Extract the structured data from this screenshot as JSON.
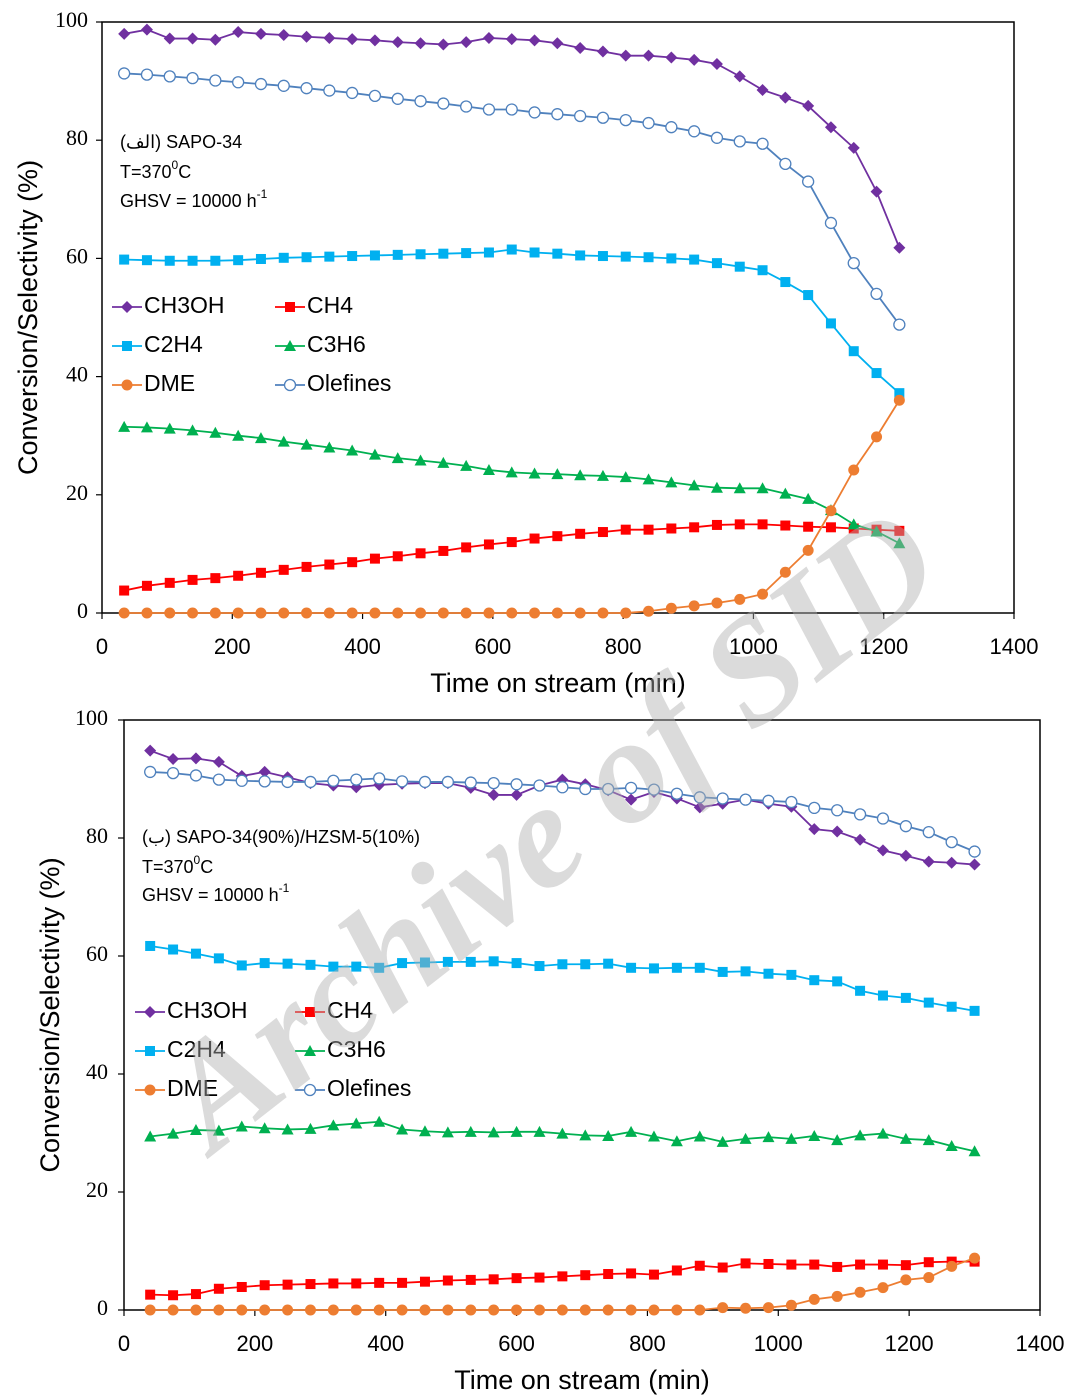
{
  "watermark": "Archive of SID",
  "chart_data": [
    {
      "type": "line",
      "annotation": [
        "(الف)",
        "SAPO-34",
        "T=370",
        "0",
        "C",
        "GHSV = 10000 h",
        "-1"
      ],
      "x_label": "Time on stream (min)",
      "y_label": "Conversion/Selectivity (%)",
      "xlim": [
        0,
        1400
      ],
      "xticks": [
        0,
        200,
        400,
        600,
        800,
        1000,
        1200,
        1400
      ],
      "ylim": [
        0,
        100
      ],
      "yticks": [
        0,
        20,
        40,
        60,
        80,
        100
      ],
      "x": [
        34,
        69,
        104,
        139,
        174,
        209,
        244,
        279,
        314,
        349,
        384,
        419,
        454,
        489,
        524,
        559,
        594,
        629,
        664,
        699,
        734,
        769,
        804,
        839,
        874,
        909,
        944,
        979,
        1014,
        1049,
        1084,
        1119,
        1154,
        1189,
        1224
      ],
      "series": [
        {
          "name": "CH3OH",
          "color": "#7030a0",
          "marker": "diamond",
          "values": [
            98,
            98.7,
            97.2,
            97.2,
            97,
            98.3,
            98,
            97.8,
            97.5,
            97.3,
            97.1,
            96.9,
            96.6,
            96.4,
            96.2,
            96.6,
            97.3,
            97.1,
            96.9,
            96.4,
            95.6,
            95,
            94.3,
            94.3,
            94,
            93.6,
            92.9,
            90.8,
            88.5,
            87.2,
            85.8,
            82.2,
            78.7,
            71.3,
            61.8
          ]
        },
        {
          "name": "CH4",
          "color": "#ff0000",
          "marker": "square",
          "values": [
            3.8,
            4.6,
            5.1,
            5.6,
            5.9,
            6.3,
            6.8,
            7.3,
            7.8,
            8.2,
            8.6,
            9.2,
            9.6,
            10.1,
            10.5,
            11.1,
            11.6,
            12,
            12.6,
            13,
            13.4,
            13.7,
            14.1,
            14.1,
            14.3,
            14.5,
            14.9,
            15,
            15,
            14.8,
            14.6,
            14.5,
            14.3,
            14.1,
            13.9
          ]
        },
        {
          "name": "C2H4",
          "color": "#00b0f0",
          "marker": "square",
          "values": [
            59.8,
            59.7,
            59.6,
            59.6,
            59.6,
            59.7,
            59.9,
            60.1,
            60.2,
            60.3,
            60.4,
            60.5,
            60.6,
            60.7,
            60.8,
            60.9,
            61,
            61.5,
            61,
            60.8,
            60.5,
            60.4,
            60.3,
            60.2,
            60,
            59.8,
            59.2,
            58.6,
            58,
            56,
            53.8,
            49,
            44.3,
            40.6,
            37.2
          ]
        },
        {
          "name": "C3H6",
          "color": "#00b050",
          "marker": "triangle",
          "values": [
            31.5,
            31.4,
            31.2,
            30.9,
            30.5,
            30,
            29.6,
            29,
            28.5,
            28,
            27.5,
            26.8,
            26.2,
            25.8,
            25.4,
            24.9,
            24.2,
            23.8,
            23.6,
            23.5,
            23.3,
            23.2,
            23,
            22.6,
            22.1,
            21.6,
            21.2,
            21.1,
            21.1,
            20.2,
            19.3,
            17.4,
            15,
            13.8,
            11.8
          ]
        },
        {
          "name": "DME",
          "color": "#ed7d31",
          "marker": "circle",
          "values": [
            0,
            0,
            0,
            0,
            0,
            0,
            0,
            0,
            0,
            0,
            0,
            0,
            0,
            0,
            0,
            0,
            0,
            0,
            0,
            0,
            0,
            0,
            0,
            0.3,
            0.8,
            1.2,
            1.7,
            2.3,
            3.2,
            6.9,
            10.6,
            17.3,
            24.2,
            29.8,
            36
          ]
        },
        {
          "name": "Olefines",
          "color": "#4f81bd",
          "marker": "open-circle",
          "values": [
            91.3,
            91.1,
            90.8,
            90.5,
            90.1,
            89.8,
            89.5,
            89.2,
            88.8,
            88.4,
            88,
            87.5,
            87,
            86.6,
            86.2,
            85.7,
            85.2,
            85.2,
            84.7,
            84.4,
            84.1,
            83.8,
            83.4,
            82.9,
            82.2,
            81.5,
            80.4,
            79.8,
            79.4,
            76,
            73,
            66,
            59.2,
            54,
            48.8
          ]
        }
      ]
    },
    {
      "type": "line",
      "annotation": [
        "(ب)",
        "SAPO-34(90%)/HZSM-5(10%)",
        "T=370",
        "0",
        "C",
        "GHSV = 10000 h",
        "-1"
      ],
      "x_label": "Time on stream (min)",
      "y_label": "Conversion/Selectivity (%)",
      "xlim": [
        0,
        1400
      ],
      "xticks": [
        0,
        200,
        400,
        600,
        800,
        1000,
        1200,
        1400
      ],
      "ylim": [
        0,
        100
      ],
      "yticks": [
        0,
        20,
        40,
        60,
        80,
        100
      ],
      "x": [
        40,
        75,
        110,
        145,
        180,
        215,
        250,
        285,
        320,
        355,
        390,
        425,
        460,
        495,
        530,
        565,
        600,
        635,
        670,
        705,
        740,
        775,
        810,
        845,
        880,
        915,
        950,
        985,
        1020,
        1055,
        1090,
        1125,
        1160,
        1195,
        1230,
        1265,
        1300
      ],
      "series": [
        {
          "name": "CH3OH",
          "color": "#7030a0",
          "marker": "diamond",
          "values": [
            94.8,
            93.4,
            93.5,
            92.9,
            90.5,
            91.2,
            90.3,
            89.3,
            88.9,
            88.6,
            89,
            89.2,
            89.3,
            89.3,
            88.5,
            87.3,
            87.3,
            88.9,
            89.9,
            89.1,
            88.1,
            86.5,
            87.8,
            86.7,
            85.2,
            85.8,
            86.5,
            85.8,
            85.3,
            81.5,
            81.1,
            79.7,
            77.9,
            77,
            76,
            75.8,
            75.5
          ]
        },
        {
          "name": "CH4",
          "color": "#ff0000",
          "marker": "square",
          "values": [
            2.6,
            2.5,
            2.7,
            3.6,
            3.9,
            4.2,
            4.3,
            4.4,
            4.5,
            4.5,
            4.6,
            4.6,
            4.8,
            5,
            5.1,
            5.2,
            5.4,
            5.5,
            5.7,
            5.9,
            6.1,
            6.2,
            6,
            6.7,
            7.5,
            7.2,
            7.9,
            7.8,
            7.7,
            7.7,
            7.3,
            7.7,
            7.7,
            7.6,
            8.1,
            8.2,
            8.2
          ]
        },
        {
          "name": "C2H4",
          "color": "#00b0f0",
          "marker": "square",
          "values": [
            61.7,
            61.1,
            60.4,
            59.6,
            58.4,
            58.8,
            58.7,
            58.5,
            58.2,
            58.2,
            58,
            58.8,
            58.9,
            59,
            59,
            59.1,
            58.8,
            58.3,
            58.6,
            58.6,
            58.7,
            58,
            57.9,
            58,
            58,
            57.3,
            57.4,
            57,
            56.8,
            55.9,
            55.7,
            54.1,
            53.3,
            52.9,
            52.1,
            51.4,
            50.7
          ]
        },
        {
          "name": "C3H6",
          "color": "#00b050",
          "marker": "triangle",
          "values": [
            29.4,
            29.9,
            30.5,
            30.4,
            31.1,
            30.8,
            30.6,
            30.7,
            31.3,
            31.6,
            31.9,
            30.6,
            30.3,
            30.1,
            30.2,
            30.1,
            30.2,
            30.2,
            29.9,
            29.6,
            29.5,
            30.2,
            29.4,
            28.6,
            29.4,
            28.5,
            29,
            29.3,
            29,
            29.5,
            28.8,
            29.6,
            29.9,
            29,
            28.8,
            27.8,
            26.9
          ]
        },
        {
          "name": "DME",
          "color": "#ed7d31",
          "marker": "circle",
          "values": [
            0,
            0,
            0,
            0,
            0,
            0,
            0,
            0,
            0,
            0,
            0,
            0,
            0,
            0,
            0,
            0,
            0,
            0,
            0,
            0,
            0,
            0,
            0,
            0,
            0,
            0.4,
            0.3,
            0.4,
            0.8,
            1.8,
            2.3,
            3,
            3.8,
            5.1,
            5.5,
            7.4,
            8.8
          ]
        },
        {
          "name": "Olefines",
          "color": "#4f81bd",
          "marker": "open-circle",
          "values": [
            91.2,
            91,
            90.6,
            89.9,
            89.7,
            89.6,
            89.5,
            89.5,
            89.7,
            89.9,
            90.1,
            89.6,
            89.5,
            89.5,
            89.4,
            89.3,
            89.1,
            88.9,
            88.6,
            88.3,
            88.3,
            88.5,
            88.2,
            87.5,
            86.9,
            86.7,
            86.5,
            86.3,
            86.1,
            85.1,
            84.7,
            84,
            83.3,
            82,
            81,
            79.3,
            77.7
          ]
        }
      ]
    }
  ]
}
